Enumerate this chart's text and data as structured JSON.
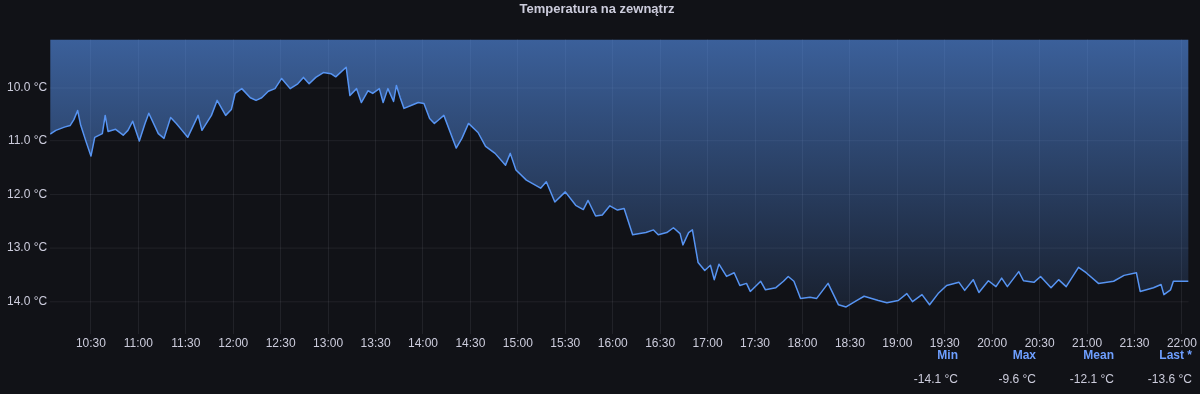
{
  "chart_data": {
    "type": "area",
    "title": "Temperatura na zewnątrz",
    "x": [
      10.07,
      10.13,
      10.22,
      10.28,
      10.32,
      10.36,
      10.39,
      10.45,
      10.5,
      10.54,
      10.62,
      10.65,
      10.68,
      10.76,
      10.84,
      10.89,
      10.94,
      11.01,
      11.07,
      11.11,
      11.21,
      11.27,
      11.34,
      11.4,
      11.46,
      11.52,
      11.59,
      11.63,
      11.67,
      11.77,
      11.83,
      11.92,
      11.98,
      12.02,
      12.09,
      12.18,
      12.24,
      12.3,
      12.37,
      12.44,
      12.51,
      12.6,
      12.68,
      12.74,
      12.8,
      12.87,
      12.95,
      13.03,
      13.08,
      13.19,
      13.23,
      13.3,
      13.35,
      13.42,
      13.47,
      13.54,
      13.58,
      13.63,
      13.69,
      13.72,
      13.76,
      13.8,
      13.88,
      13.95,
      14.01,
      14.07,
      14.12,
      14.16,
      14.22,
      14.35,
      14.41,
      14.48,
      14.58,
      14.66,
      14.76,
      14.87,
      14.92,
      14.98,
      15.09,
      15.24,
      15.3,
      15.39,
      15.5,
      15.61,
      15.69,
      15.74,
      15.82,
      15.89,
      15.97,
      16.05,
      16.12,
      16.21,
      16.27,
      16.35,
      16.43,
      16.48,
      16.57,
      16.64,
      16.71,
      16.74,
      16.8,
      16.84,
      16.9,
      16.97,
      17.03,
      17.07,
      17.12,
      17.2,
      17.28,
      17.34,
      17.41,
      17.45,
      17.56,
      17.61,
      17.72,
      17.8,
      17.85,
      17.91,
      17.98,
      18.08,
      18.15,
      18.27,
      18.38,
      18.46,
      18.57,
      18.65,
      18.8,
      18.89,
      19.01,
      19.1,
      19.16,
      19.26,
      19.34,
      19.43,
      19.52,
      19.65,
      19.71,
      19.8,
      19.86,
      19.96,
      20.04,
      20.1,
      20.16,
      20.28,
      20.33,
      20.44,
      20.51,
      20.62,
      20.7,
      20.78,
      20.91,
      20.99,
      21.12,
      21.28,
      21.39,
      21.52,
      21.56,
      21.7,
      21.78,
      21.81,
      21.88,
      21.91,
      22.07
    ],
    "series": [
      {
        "color": "#5794f2",
        "values": [
          -10.87,
          -10.8,
          -10.74,
          -10.71,
          -10.6,
          -10.43,
          -10.69,
          -11.02,
          -11.28,
          -10.93,
          -10.86,
          -10.52,
          -10.82,
          -10.78,
          -10.89,
          -10.8,
          -10.63,
          -11.0,
          -10.67,
          -10.48,
          -10.86,
          -10.95,
          -10.56,
          -10.67,
          -10.8,
          -10.93,
          -10.67,
          -10.52,
          -10.8,
          -10.52,
          -10.24,
          -10.52,
          -10.41,
          -10.11,
          -10.02,
          -10.19,
          -10.24,
          -10.19,
          -10.07,
          -10.02,
          -9.83,
          -10.02,
          -9.93,
          -9.81,
          -9.93,
          -9.81,
          -9.72,
          -9.74,
          -9.8,
          -9.62,
          -10.15,
          -10.02,
          -10.28,
          -10.06,
          -10.11,
          -10.02,
          -10.28,
          -10.02,
          -10.26,
          -9.96,
          -10.19,
          -10.39,
          -10.33,
          -10.28,
          -10.3,
          -10.58,
          -10.67,
          -10.61,
          -10.52,
          -11.13,
          -10.95,
          -10.67,
          -10.84,
          -11.1,
          -11.23,
          -11.45,
          -11.23,
          -11.54,
          -11.73,
          -11.88,
          -11.76,
          -12.14,
          -11.95,
          -12.2,
          -12.28,
          -12.11,
          -12.4,
          -12.38,
          -12.21,
          -12.29,
          -12.26,
          -12.75,
          -12.73,
          -12.71,
          -12.66,
          -12.75,
          -12.71,
          -12.62,
          -12.73,
          -12.94,
          -12.71,
          -12.66,
          -13.27,
          -13.42,
          -13.32,
          -13.59,
          -13.3,
          -13.53,
          -13.46,
          -13.7,
          -13.66,
          -13.81,
          -13.62,
          -13.78,
          -13.74,
          -13.62,
          -13.53,
          -13.62,
          -13.94,
          -13.92,
          -13.94,
          -13.66,
          -14.06,
          -14.1,
          -13.98,
          -13.9,
          -13.98,
          -14.02,
          -13.98,
          -13.85,
          -14.0,
          -13.87,
          -14.06,
          -13.85,
          -13.7,
          -13.64,
          -13.79,
          -13.59,
          -13.83,
          -13.61,
          -13.72,
          -13.56,
          -13.72,
          -13.44,
          -13.61,
          -13.64,
          -13.53,
          -13.74,
          -13.59,
          -13.72,
          -13.36,
          -13.46,
          -13.66,
          -13.62,
          -13.51,
          -13.46,
          -13.81,
          -13.74,
          -13.68,
          -13.87,
          -13.78,
          -13.62,
          -13.62
        ]
      }
    ],
    "xlim": [
      10.07,
      22.07
    ],
    "xticks": [
      {
        "value": 10.5,
        "label": "10:30"
      },
      {
        "value": 11,
        "label": "11:00"
      },
      {
        "value": 11.5,
        "label": "11:30"
      },
      {
        "value": 12,
        "label": "12:00"
      },
      {
        "value": 12.5,
        "label": "12:30"
      },
      {
        "value": 13,
        "label": "13:00"
      },
      {
        "value": 13.5,
        "label": "13:30"
      },
      {
        "value": 14,
        "label": "14:00"
      },
      {
        "value": 14.5,
        "label": "14:30"
      },
      {
        "value": 15,
        "label": "15:00"
      },
      {
        "value": 15.5,
        "label": "15:30"
      },
      {
        "value": 16,
        "label": "16:00"
      },
      {
        "value": 16.5,
        "label": "16:30"
      },
      {
        "value": 17,
        "label": "17:00"
      },
      {
        "value": 17.5,
        "label": "17:30"
      },
      {
        "value": 18,
        "label": "18:00"
      },
      {
        "value": 18.5,
        "label": "18:30"
      },
      {
        "value": 19,
        "label": "19:00"
      },
      {
        "value": 19.5,
        "label": "19:30"
      },
      {
        "value": 20,
        "label": "20:00"
      },
      {
        "value": 20.5,
        "label": "20:30"
      },
      {
        "value": 21,
        "label": "21:00"
      },
      {
        "value": 21.5,
        "label": "21:30"
      },
      {
        "value": 22,
        "label": "22:00"
      }
    ],
    "ylim": [
      -14.6,
      -9.1
    ],
    "yticks": [
      {
        "value": -14,
        "label": "14.0 °C"
      },
      {
        "value": -13,
        "label": "13.0 °C"
      },
      {
        "value": -12,
        "label": "12.0 °C"
      },
      {
        "value": -11,
        "label": "11.0 °C"
      },
      {
        "value": -10,
        "label": "10.0 °C"
      }
    ],
    "grid": true,
    "annotations": [
      "Min",
      "Max",
      "Mean",
      "Last *",
      "-14.1 °C",
      "-9.6 °C",
      "-12.1 °C",
      "-13.6 °C"
    ]
  }
}
